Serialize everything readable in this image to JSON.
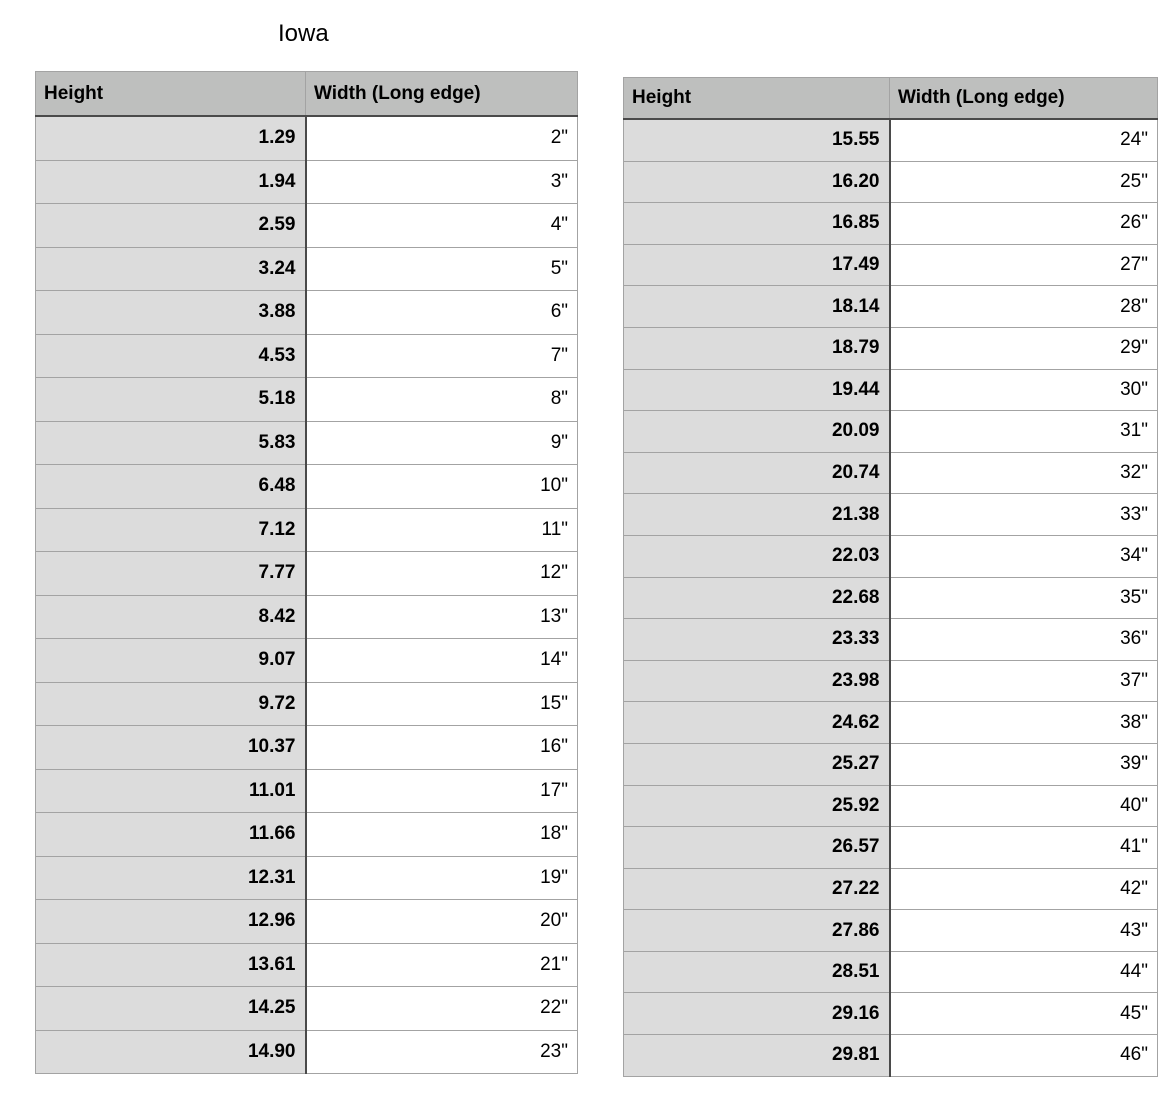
{
  "title": "Iowa",
  "headers": {
    "height": "Height",
    "width": "Width (Long edge)"
  },
  "colors": {
    "header_bg": "#bebfbe",
    "first_column_bg": "#dcdcdc"
  },
  "tables": [
    {
      "rows": [
        [
          "1.29",
          "2\""
        ],
        [
          "1.94",
          "3\""
        ],
        [
          "2.59",
          "4\""
        ],
        [
          "3.24",
          "5\""
        ],
        [
          "3.88",
          "6\""
        ],
        [
          "4.53",
          "7\""
        ],
        [
          "5.18",
          "8\""
        ],
        [
          "5.83",
          "9\""
        ],
        [
          "6.48",
          "10\""
        ],
        [
          "7.12",
          "11\""
        ],
        [
          "7.77",
          "12\""
        ],
        [
          "8.42",
          "13\""
        ],
        [
          "9.07",
          "14\""
        ],
        [
          "9.72",
          "15\""
        ],
        [
          "10.37",
          "16\""
        ],
        [
          "11.01",
          "17\""
        ],
        [
          "11.66",
          "18\""
        ],
        [
          "12.31",
          "19\""
        ],
        [
          "12.96",
          "20\""
        ],
        [
          "13.61",
          "21\""
        ],
        [
          "14.25",
          "22\""
        ],
        [
          "14.90",
          "23\""
        ]
      ]
    },
    {
      "rows": [
        [
          "15.55",
          "24\""
        ],
        [
          "16.20",
          "25\""
        ],
        [
          "16.85",
          "26\""
        ],
        [
          "17.49",
          "27\""
        ],
        [
          "18.14",
          "28\""
        ],
        [
          "18.79",
          "29\""
        ],
        [
          "19.44",
          "30\""
        ],
        [
          "20.09",
          "31\""
        ],
        [
          "20.74",
          "32\""
        ],
        [
          "21.38",
          "33\""
        ],
        [
          "22.03",
          "34\""
        ],
        [
          "22.68",
          "35\""
        ],
        [
          "23.33",
          "36\""
        ],
        [
          "23.98",
          "37\""
        ],
        [
          "24.62",
          "38\""
        ],
        [
          "25.27",
          "39\""
        ],
        [
          "25.92",
          "40\""
        ],
        [
          "26.57",
          "41\""
        ],
        [
          "27.22",
          "42\""
        ],
        [
          "27.86",
          "43\""
        ],
        [
          "28.51",
          "44\""
        ],
        [
          "29.16",
          "45\""
        ],
        [
          "29.81",
          "46\""
        ]
      ]
    }
  ]
}
